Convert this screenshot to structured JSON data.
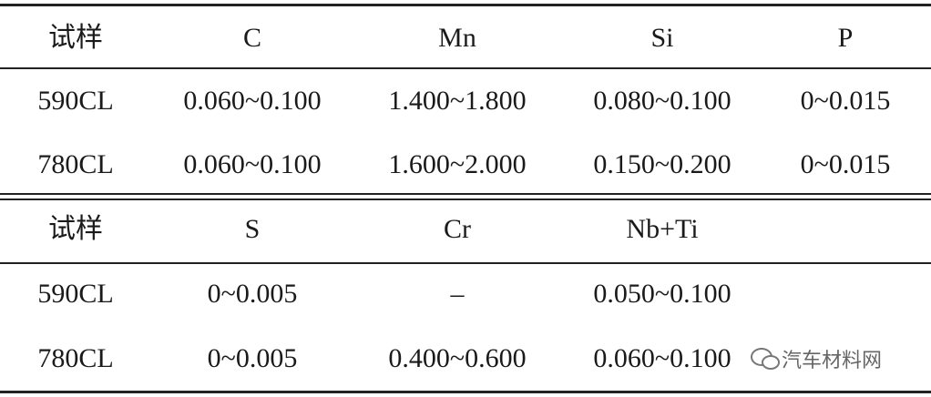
{
  "table": {
    "sections": [
      {
        "header": [
          "试样",
          "C",
          "Mn",
          "Si",
          "P"
        ],
        "rows": [
          [
            "590CL",
            "0.060~0.100",
            "1.400~1.800",
            "0.080~0.100",
            "0~0.015"
          ],
          [
            "780CL",
            "0.060~0.100",
            "1.600~2.000",
            "0.150~0.200",
            "0~0.015"
          ]
        ]
      },
      {
        "header": [
          "试样",
          "S",
          "Cr",
          "Nb+Ti"
        ],
        "rows": [
          [
            "590CL",
            "0~0.005",
            "–",
            "0.050~0.100"
          ],
          [
            "780CL",
            "0~0.005",
            "0.400~0.600",
            "0.060~0.100"
          ]
        ]
      }
    ]
  },
  "watermark": "汽车材料网"
}
